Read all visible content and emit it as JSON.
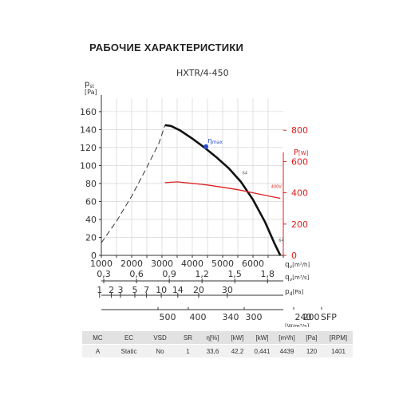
{
  "page_title": "РАБОЧИЕ ХАРАКТЕРИСТИКИ",
  "chart_data": {
    "type": "line",
    "title": "HXTR/4-450",
    "y_label": {
      "main": "p",
      "sub": "st",
      "unit": "[Pa]"
    },
    "y_ticks": [
      0,
      20,
      40,
      60,
      80,
      100,
      120,
      140,
      160
    ],
    "ylim": [
      0,
      175
    ],
    "x_ticks": [
      1000,
      2000,
      3000,
      4000,
      5000,
      6000
    ],
    "xlim": [
      1000,
      7000
    ],
    "x_label": {
      "main": "q",
      "sub": "v",
      "unit": "[m³/h]"
    },
    "power_axis": {
      "label": "P",
      "unit": "[W]",
      "ticks": [
        0,
        200,
        400,
        600,
        800
      ],
      "range": [
        0,
        1005
      ]
    },
    "secondary_axes": [
      {
        "ticks": [
          "0,3",
          "0,6",
          "0,9",
          "1,2",
          "1,5",
          "1,8"
        ],
        "values": [
          0.3,
          0.6,
          0.9,
          1.2,
          1.5,
          1.8
        ],
        "unit_main": "q",
        "unit_sub": "v",
        "unit": "[m³/s]",
        "scale": 3600
      },
      {
        "ticks": [
          "1",
          "2",
          "3",
          "5",
          "7",
          "10",
          "14",
          "20",
          "30"
        ],
        "values": [
          1,
          2,
          3,
          5,
          7,
          10,
          14,
          20,
          30
        ],
        "unit_main": "p",
        "unit_sub": "d",
        "unit": "[Pa]",
        "kind": "dynamic"
      },
      {
        "ticks": [
          "500",
          "400",
          "300",
          "240",
          "200"
        ],
        "values": [
          500,
          400,
          300,
          240,
          200
        ],
        "extra_ticks": [
          {
            "label": "340",
            "value": 340
          }
        ],
        "unit_main": "SFP",
        "unit": "[W/m³/s]",
        "kind": "sfp"
      }
    ],
    "series": [
      {
        "kind": "pressure-stall",
        "x": [
          1000,
          1500,
          2000,
          2500,
          2900,
          3100
        ],
        "y": [
          14,
          38,
          66,
          98,
          125,
          145
        ]
      },
      {
        "kind": "pressure",
        "x": [
          3100,
          3300,
          3600,
          4000,
          4400,
          4800,
          5200,
          5600,
          6000,
          6400,
          6700,
          6900
        ],
        "y": [
          145,
          144,
          139,
          130,
          120,
          109,
          97,
          82,
          62,
          37,
          14,
          0
        ]
      },
      {
        "kind": "power",
        "x": [
          3100,
          3500,
          4000,
          4500,
          5000,
          5500,
          6000,
          6500,
          6900
        ],
        "y": [
          465,
          470,
          460,
          450,
          435,
          420,
          400,
          380,
          365
        ]
      }
    ],
    "point_label": "η",
    "point_label_sub": "max",
    "point": {
      "x": 4450,
      "y": 121
    },
    "curve_labels": [
      {
        "text": "64",
        "x": 5650,
        "y": 90
      },
      {
        "text": "400V",
        "x": 6600,
        "y": 430
      },
      {
        "text": "64",
        "x": 6850,
        "y": 15
      }
    ]
  },
  "table": {
    "headers": [
      "MC",
      "EC",
      "VSD",
      "SR",
      "η[%]",
      "[kW]",
      "[kW]",
      "[m³/h]",
      "[Pa]",
      "[RPM]"
    ],
    "rows": [
      [
        "A",
        "Static",
        "No",
        "1",
        "33,6",
        "42,2",
        "0,441",
        "4439",
        "120",
        "1401"
      ]
    ]
  }
}
